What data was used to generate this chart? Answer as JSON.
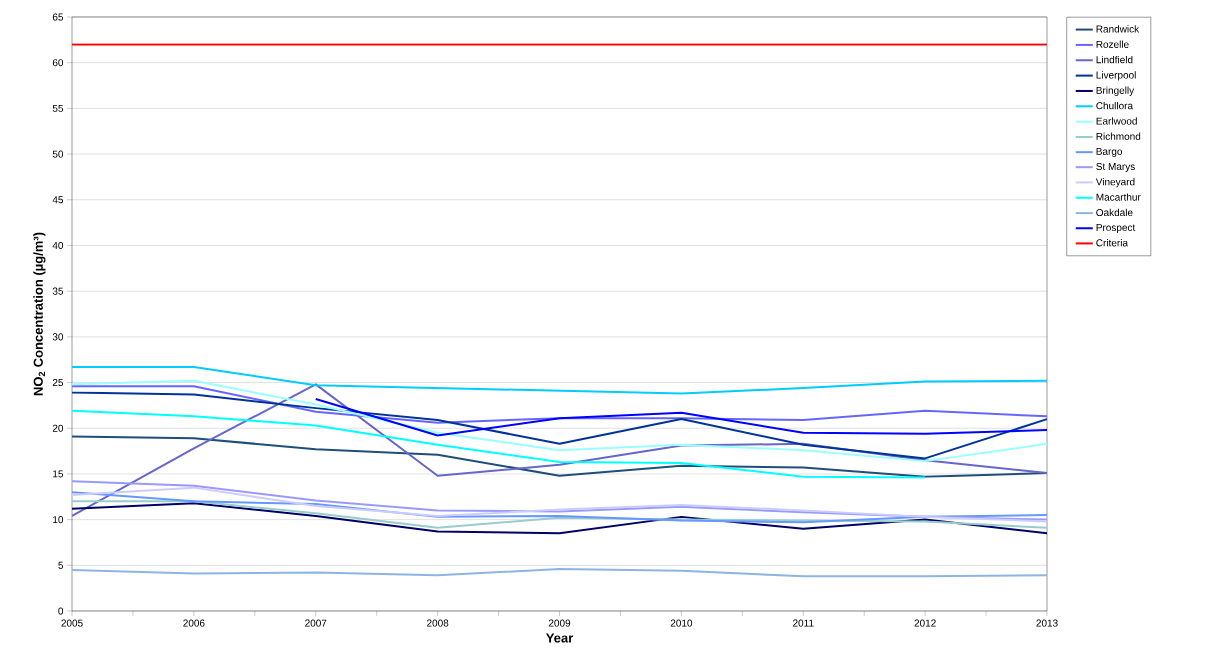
{
  "chart_data": {
    "type": "line",
    "xlabel": "Year",
    "ylabel": "NO$_{2}$ Concentration (µg/m³)",
    "x": [
      2005,
      2006,
      2007,
      2008,
      2009,
      2010,
      2011,
      2012,
      2013
    ],
    "xlim": [
      2005,
      2013
    ],
    "xticks": [
      2005,
      2006,
      2007,
      2008,
      2009,
      2010,
      2011,
      2012,
      2013
    ],
    "ylim": [
      0,
      65
    ],
    "yticks": [
      0,
      5,
      10,
      15,
      20,
      25,
      30,
      35,
      40,
      45,
      50,
      55,
      60,
      65
    ],
    "grid": "y",
    "legend": "right",
    "marker": "none",
    "line_style": "solid",
    "series": [
      {
        "name": "Randwick",
        "color": "#1f4e79",
        "values": [
          19.1,
          18.9,
          17.7,
          17.1,
          14.8,
          15.9,
          15.7,
          14.7,
          15.1
        ]
      },
      {
        "name": "Rozelle",
        "color": "#6666ff",
        "values": [
          24.6,
          24.6,
          21.8,
          20.6,
          21.1,
          21.1,
          20.9,
          21.9,
          21.3
        ]
      },
      {
        "name": "Lindfield",
        "color": "#6666cc",
        "values": [
          10.4,
          17.8,
          24.8,
          14.8,
          16.0,
          18.1,
          18.3,
          16.5,
          15.1
        ]
      },
      {
        "name": "Liverpool",
        "color": "#003399",
        "values": [
          23.9,
          23.7,
          22.2,
          20.9,
          18.3,
          21.0,
          18.2,
          16.7,
          21.0
        ]
      },
      {
        "name": "Bringelly",
        "color": "#000066",
        "values": [
          11.2,
          11.8,
          10.4,
          8.7,
          8.5,
          10.3,
          9.0,
          10.0,
          8.5
        ]
      },
      {
        "name": "Chullora",
        "color": "#00ccff",
        "values": [
          26.7,
          26.7,
          24.7,
          24.4,
          24.1,
          23.8,
          24.4,
          25.1,
          25.2
        ]
      },
      {
        "name": "Earlwood",
        "color": "#99ffff",
        "values": [
          24.8,
          25.2,
          22.6,
          19.5,
          17.6,
          18.2,
          17.6,
          16.4,
          18.3
        ]
      },
      {
        "name": "Richmond",
        "color": "#99cccc",
        "values": [
          12.0,
          12.0,
          10.7,
          9.1,
          10.2,
          10.0,
          9.9,
          9.8,
          9.1
        ]
      },
      {
        "name": "Bargo",
        "color": "#6699ff",
        "values": [
          13.0,
          12.0,
          11.7,
          10.3,
          10.4,
          9.9,
          9.7,
          10.3,
          10.5
        ]
      },
      {
        "name": "St Marys",
        "color": "#9999ff",
        "values": [
          14.2,
          13.7,
          12.1,
          11.0,
          10.9,
          11.4,
          10.8,
          10.3,
          10.0
        ]
      },
      {
        "name": "Vineyard",
        "color": "#ccccff",
        "values": [
          12.7,
          13.5,
          11.5,
          10.4,
          11.1,
          11.6,
          11.0,
          10.3,
          9.8
        ]
      },
      {
        "name": "Macarthur",
        "color": "#00ffff",
        "values": [
          21.9,
          21.3,
          20.3,
          18.2,
          16.3,
          16.2,
          14.7,
          14.6,
          null
        ]
      },
      {
        "name": "Oakdale",
        "color": "#8eb4e3",
        "values": [
          4.5,
          4.1,
          4.2,
          3.9,
          4.6,
          4.4,
          3.8,
          3.8,
          3.9
        ]
      },
      {
        "name": "Prospect",
        "color": "#0000ff",
        "values": [
          null,
          null,
          23.2,
          19.2,
          21.1,
          21.7,
          19.5,
          19.4,
          19.8
        ]
      },
      {
        "name": "Criteria",
        "color": "#ff0000",
        "values": [
          62,
          62,
          62,
          62,
          62,
          62,
          62,
          62,
          62
        ]
      }
    ]
  }
}
